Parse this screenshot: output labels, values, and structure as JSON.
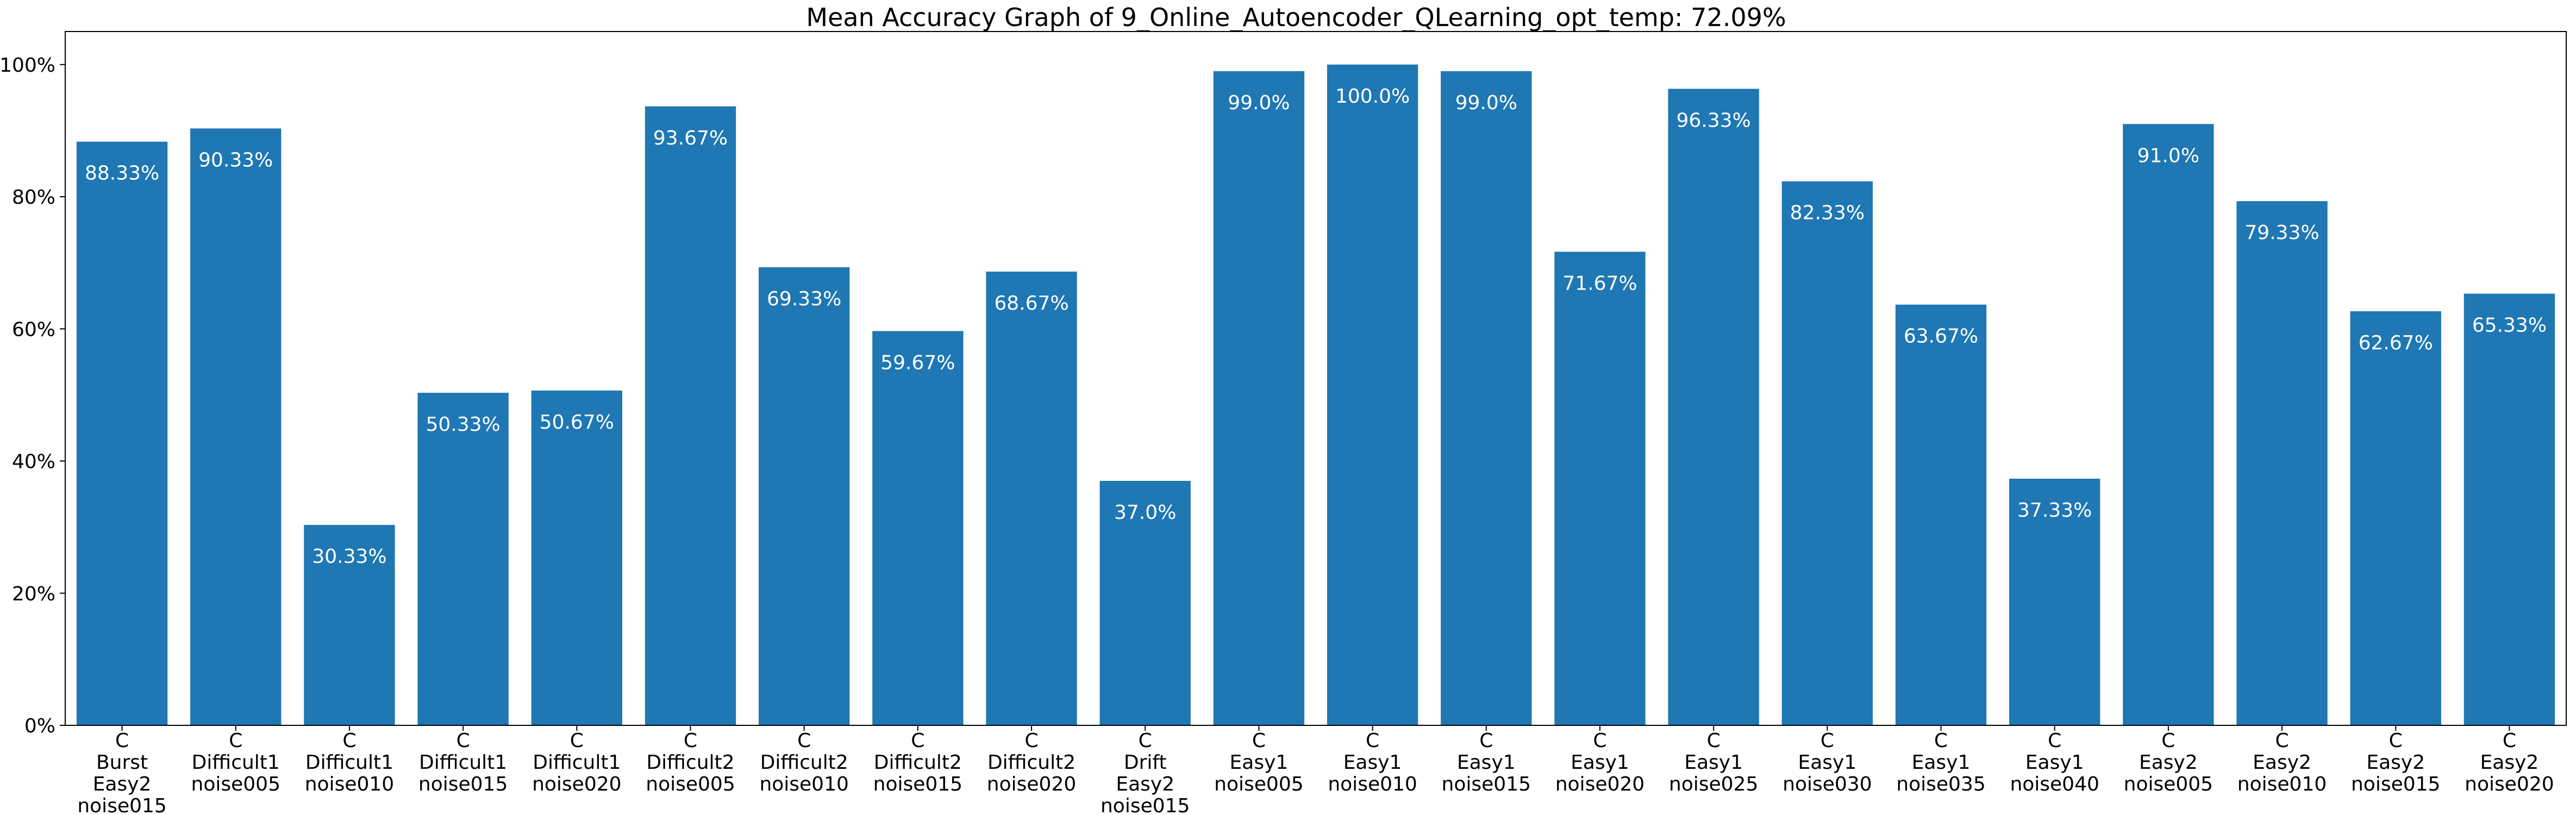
{
  "chart_data": {
    "type": "bar",
    "title": "Mean Accuracy Graph of 9_Online_Autoencoder_QLearning_opt_temp: 72.09%",
    "xlabel": "",
    "ylabel": "",
    "ylim": [
      0,
      105
    ],
    "yticks": [
      0,
      20,
      40,
      60,
      80,
      100
    ],
    "ytick_labels": [
      "0%",
      "20%",
      "40%",
      "60%",
      "80%",
      "100%"
    ],
    "grid": false,
    "bar_color": "#1f77b4",
    "categories": [
      [
        "C",
        "Burst",
        "Easy2",
        "noise015"
      ],
      [
        "C",
        "Difficult1",
        "noise005"
      ],
      [
        "C",
        "Difficult1",
        "noise010"
      ],
      [
        "C",
        "Difficult1",
        "noise015"
      ],
      [
        "C",
        "Difficult1",
        "noise020"
      ],
      [
        "C",
        "Difficult2",
        "noise005"
      ],
      [
        "C",
        "Difficult2",
        "noise010"
      ],
      [
        "C",
        "Difficult2",
        "noise015"
      ],
      [
        "C",
        "Difficult2",
        "noise020"
      ],
      [
        "C",
        "Drift",
        "Easy2",
        "noise015"
      ],
      [
        "C",
        "Easy1",
        "noise005"
      ],
      [
        "C",
        "Easy1",
        "noise010"
      ],
      [
        "C",
        "Easy1",
        "noise015"
      ],
      [
        "C",
        "Easy1",
        "noise020"
      ],
      [
        "C",
        "Easy1",
        "noise025"
      ],
      [
        "C",
        "Easy1",
        "noise030"
      ],
      [
        "C",
        "Easy1",
        "noise035"
      ],
      [
        "C",
        "Easy1",
        "noise040"
      ],
      [
        "C",
        "Easy2",
        "noise005"
      ],
      [
        "C",
        "Easy2",
        "noise010"
      ],
      [
        "C",
        "Easy2",
        "noise015"
      ],
      [
        "C",
        "Easy2",
        "noise020"
      ]
    ],
    "values": [
      88.33,
      90.33,
      30.33,
      50.33,
      50.67,
      93.67,
      69.33,
      59.67,
      68.67,
      37.0,
      99.0,
      100.0,
      99.0,
      71.67,
      96.33,
      82.33,
      63.67,
      37.33,
      91.0,
      79.33,
      62.67,
      65.33
    ],
    "value_labels": [
      "88.33%",
      "90.33%",
      "30.33%",
      "50.33%",
      "50.67%",
      "93.67%",
      "69.33%",
      "59.67%",
      "68.67%",
      "37.0%",
      "99.0%",
      "100.0%",
      "99.0%",
      "71.67%",
      "96.33%",
      "82.33%",
      "63.67%",
      "37.33%",
      "91.0%",
      "79.33%",
      "62.67%",
      "65.33%"
    ]
  }
}
